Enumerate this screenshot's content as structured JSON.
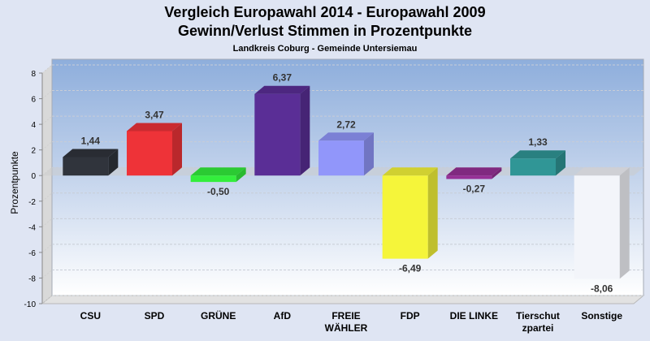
{
  "title": "Vergleich Europawahl 2014 - Europawahl 2009",
  "subtitle": "Gewinn/Verlust Stimmen in Prozentpunkte",
  "subsubtitle": "Landkreis Coburg - Gemeinde Untersiemau",
  "chart_data": {
    "type": "bar",
    "title": "Vergleich Europawahl 2014 - Europawahl 2009 / Gewinn/Verlust Stimmen in Prozentpunkte",
    "subtitle": "Landkreis Coburg - Gemeinde Untersiemau",
    "xlabel": "",
    "ylabel": "Prozentpunkte",
    "ylim": [
      -10,
      8
    ],
    "yticks": [
      8,
      6,
      4,
      2,
      0,
      -2,
      -4,
      -6,
      -8,
      -10
    ],
    "grid": true,
    "categories": [
      [
        "CSU"
      ],
      [
        "SPD"
      ],
      [
        "GRÜNE"
      ],
      [
        "AfD"
      ],
      [
        "FREIE",
        "WÄHLER"
      ],
      [
        "FDP"
      ],
      [
        "DIE LINKE"
      ],
      [
        "Tierschut",
        "zpartei"
      ],
      [
        "Sonstige"
      ]
    ],
    "values": [
      1.44,
      3.47,
      -0.5,
      6.37,
      2.72,
      -6.49,
      -0.27,
      1.33,
      -8.06
    ],
    "value_labels": [
      "1,44",
      "3,47",
      "-0,50",
      "6,37",
      "2,72",
      "-6,49",
      "-0,27",
      "1,33",
      "-8,06"
    ],
    "colors": [
      "#30343c",
      "#ee3338",
      "#33ee3c",
      "#5a2e96",
      "#9196fa",
      "#f5f53a",
      "#963096",
      "#309696",
      "#f3f5fa"
    ]
  }
}
